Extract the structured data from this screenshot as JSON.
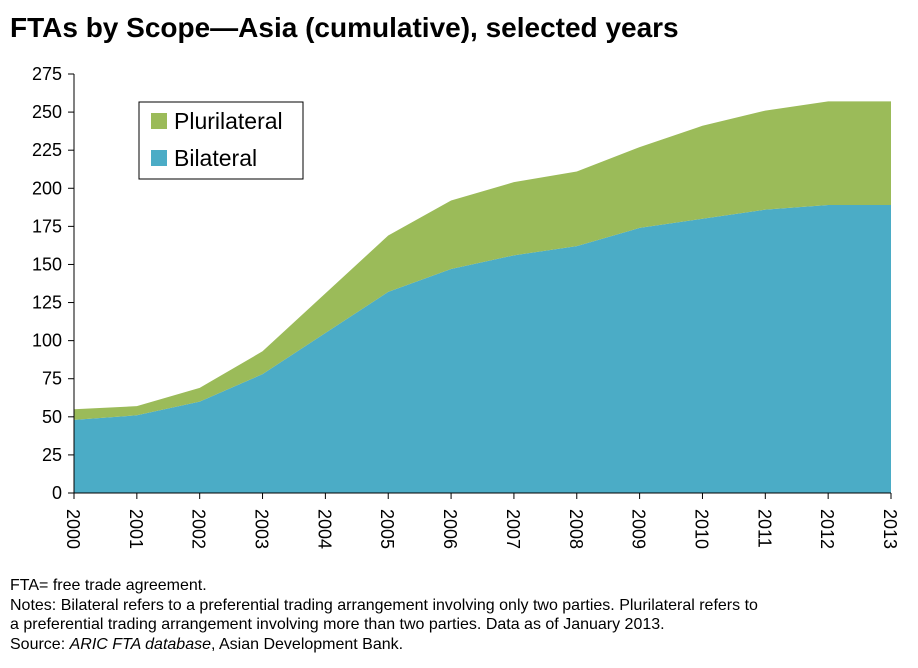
{
  "chart_data": {
    "type": "area",
    "title": "FTAs by Scope—Asia (cumulative), selected years",
    "categories": [
      "2000",
      "2001",
      "2002",
      "2003",
      "2004",
      "2005",
      "2006",
      "2007",
      "2008",
      "2009",
      "2010",
      "2011",
      "2012",
      "2013"
    ],
    "series": [
      {
        "name": "Bilateral",
        "values": [
          48,
          51,
          60,
          78,
          105,
          132,
          147,
          156,
          162,
          174,
          180,
          186,
          189,
          189
        ],
        "color": "#4bacc6"
      },
      {
        "name": "Plurilateral",
        "values": [
          7,
          6,
          9,
          15,
          26,
          37,
          45,
          48,
          49,
          53,
          61,
          65,
          68,
          68
        ],
        "color": "#9bbb59"
      }
    ],
    "stacked": true,
    "ylim": [
      0,
      275
    ],
    "yticks": [
      0,
      25,
      50,
      75,
      100,
      125,
      150,
      175,
      200,
      225,
      250,
      275
    ],
    "grid": false,
    "legend": "top-left",
    "legend_order": [
      "Plurilateral",
      "Bilateral"
    ]
  },
  "notes": {
    "abbrev": "FTA= free trade agreement.",
    "notes_line1": "Notes: Bilateral refers to a preferential trading arrangement involving only two parties. Plurilateral refers to",
    "notes_line2": "a preferential trading arrangement involving more than two parties. Data as of January 2013.",
    "source_label": "Source: ",
    "source_italic": "ARIC FTA database",
    "source_rest": ", Asian Development Bank."
  }
}
